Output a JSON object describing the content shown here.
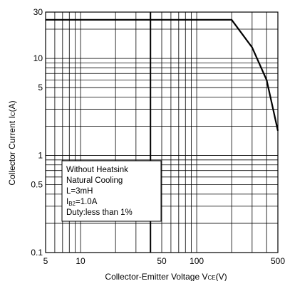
{
  "chart_data": {
    "type": "line",
    "title": "",
    "xlabel": {
      "main": "Collector-Emitter Voltage V",
      "sub": "CE",
      "unit": "(V)"
    },
    "ylabel": {
      "main": "Collector Current I",
      "sub": "C",
      "unit": "(A)"
    },
    "x_scale": "log",
    "y_scale": "log",
    "xlim": [
      5,
      500
    ],
    "ylim": [
      0.1,
      30
    ],
    "x_ticks": [
      {
        "value": 5,
        "label": "5"
      },
      {
        "value": 10,
        "label": "10"
      },
      {
        "value": 50,
        "label": "50"
      },
      {
        "value": 100,
        "label": "100"
      },
      {
        "value": 500,
        "label": "500"
      }
    ],
    "y_ticks": [
      {
        "value": 30,
        "label": "30"
      },
      {
        "value": 10,
        "label": "10"
      },
      {
        "value": 5,
        "label": "5"
      },
      {
        "value": 1,
        "label": "1"
      },
      {
        "value": 0.5,
        "label": "0.5"
      },
      {
        "value": 0.1,
        "label": "0.1"
      }
    ],
    "grid": true,
    "series": [
      {
        "color": "#000000",
        "points": [
          {
            "x": 5,
            "y": 25
          },
          {
            "x": 200,
            "y": 25
          },
          {
            "x": 300,
            "y": 13
          },
          {
            "x": 400,
            "y": 6
          },
          {
            "x": 500,
            "y": 1.8
          }
        ]
      }
    ],
    "reference_line": {
      "x": 40
    },
    "annotation": {
      "lines": [
        {
          "text": "Without Heatsink"
        },
        {
          "text": "Natural Cooling"
        },
        {
          "text": "L=3mH"
        },
        {
          "text": "I",
          "sub": "B2",
          "rest": "=1.0A"
        },
        {
          "text": "Duty:less than 1%"
        }
      ],
      "position": "lower-left"
    }
  }
}
